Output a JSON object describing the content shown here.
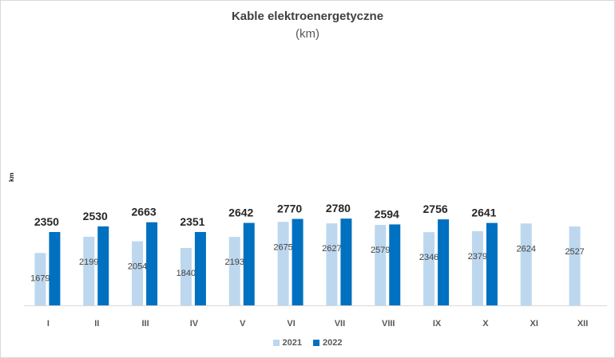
{
  "chart_data": {
    "type": "bar",
    "title": "Kable elektroenergetyczne",
    "subtitle": "(km)",
    "xlabel": "",
    "ylabel": "km",
    "ylim": [
      0,
      6700
    ],
    "categories": [
      "I",
      "II",
      "III",
      "IV",
      "V",
      "VI",
      "VII",
      "VIII",
      "IX",
      "X",
      "XI",
      "XII"
    ],
    "series": [
      {
        "name": "2021",
        "color": "#bdd7ee",
        "values": [
          1679,
          2199,
          2054,
          1840,
          2193,
          2675,
          2627,
          2579,
          2346,
          2379,
          2624,
          2527
        ]
      },
      {
        "name": "2022",
        "color": "#0070c0",
        "values": [
          2350,
          2530,
          2663,
          2351,
          2642,
          2770,
          2780,
          2594,
          2756,
          2641,
          null,
          null
        ]
      }
    ]
  }
}
